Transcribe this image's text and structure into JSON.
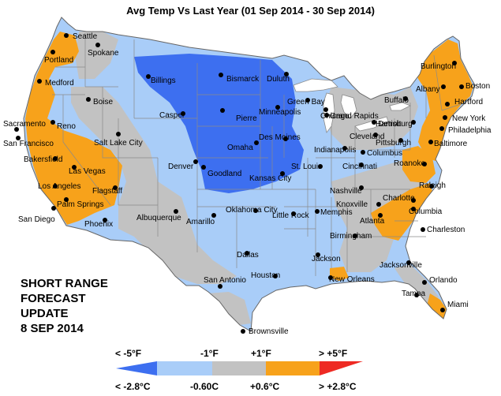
{
  "title": "Avg Temp Vs Last Year (01 Sep 2014 - 30 Sep 2014)",
  "forecast_label": [
    "SHORT RANGE",
    "FORECAST",
    "UPDATE",
    "8 SEP 2014"
  ],
  "colors": {
    "much_colder": "#3d6ff0",
    "colder": "#a9cdf8",
    "similar": "#c2c2c2",
    "warmer": "#f7a21b",
    "much_warmer": "#ee2a23",
    "water": "#ffffff",
    "outline": "#8a8a8a",
    "dot": "#000000"
  },
  "legend": {
    "top_labels": [
      "< -5°F",
      "-1°F",
      "+1°F",
      "> +5°F"
    ],
    "bottom_labels": [
      "< -2.8°C",
      "-0.60C",
      "+0.6°C",
      "> +2.8°C"
    ],
    "categories": [
      "much_colder",
      "colder",
      "similar",
      "warmer",
      "much_warmer"
    ]
  },
  "cities": [
    {
      "name": "Seattle"
    },
    {
      "name": "Spokane"
    },
    {
      "name": "Portland"
    },
    {
      "name": "Medford"
    },
    {
      "name": "Boise"
    },
    {
      "name": "Reno"
    },
    {
      "name": "Sacramento"
    },
    {
      "name": "San Francisco"
    },
    {
      "name": "Salt Lake City"
    },
    {
      "name": "Bakersfield"
    },
    {
      "name": "Las Vegas"
    },
    {
      "name": "Los Angeles"
    },
    {
      "name": "Palm Springs"
    },
    {
      "name": "San Diego"
    },
    {
      "name": "Flagstaff"
    },
    {
      "name": "Phoenix"
    },
    {
      "name": "Billings"
    },
    {
      "name": "Casper"
    },
    {
      "name": "Denver"
    },
    {
      "name": "Albuquerque"
    },
    {
      "name": "Bismarck"
    },
    {
      "name": "Pierre"
    },
    {
      "name": "Goodland"
    },
    {
      "name": "Amarillo"
    },
    {
      "name": "Oklahoma City"
    },
    {
      "name": "Duluth"
    },
    {
      "name": "Minneapolis"
    },
    {
      "name": "Des Moines"
    },
    {
      "name": "Omaha"
    },
    {
      "name": "Kansas City"
    },
    {
      "name": "St. Louis"
    },
    {
      "name": "Green Bay"
    },
    {
      "name": "Chicago"
    },
    {
      "name": "Grand Rapids"
    },
    {
      "name": "Detroit"
    },
    {
      "name": "Cleveland"
    },
    {
      "name": "Indianapolis"
    },
    {
      "name": "Columbus"
    },
    {
      "name": "Cincinnati"
    },
    {
      "name": "Pittsburgh"
    },
    {
      "name": "Buffalo"
    },
    {
      "name": "Albany"
    },
    {
      "name": "Burlington"
    },
    {
      "name": "Boston"
    },
    {
      "name": "Hartford"
    },
    {
      "name": "New York"
    },
    {
      "name": "Harrisburg"
    },
    {
      "name": "Philadelphia"
    },
    {
      "name": "Baltimore"
    },
    {
      "name": "Roanoke"
    },
    {
      "name": "Raleigh"
    },
    {
      "name": "Charlotte"
    },
    {
      "name": "Columbia"
    },
    {
      "name": "Charleston"
    },
    {
      "name": "Nashville"
    },
    {
      "name": "Knoxville"
    },
    {
      "name": "Memphis"
    },
    {
      "name": "Little Rock"
    },
    {
      "name": "Atlanta"
    },
    {
      "name": "Birmingham"
    },
    {
      "name": "Jackson"
    },
    {
      "name": "Dallas"
    },
    {
      "name": "San Antonio"
    },
    {
      "name": "Houston"
    },
    {
      "name": "New Orleans"
    },
    {
      "name": "Jacksonville"
    },
    {
      "name": "Orlando"
    },
    {
      "name": "Tampa"
    },
    {
      "name": "Miami"
    },
    {
      "name": "Brownsville"
    }
  ]
}
